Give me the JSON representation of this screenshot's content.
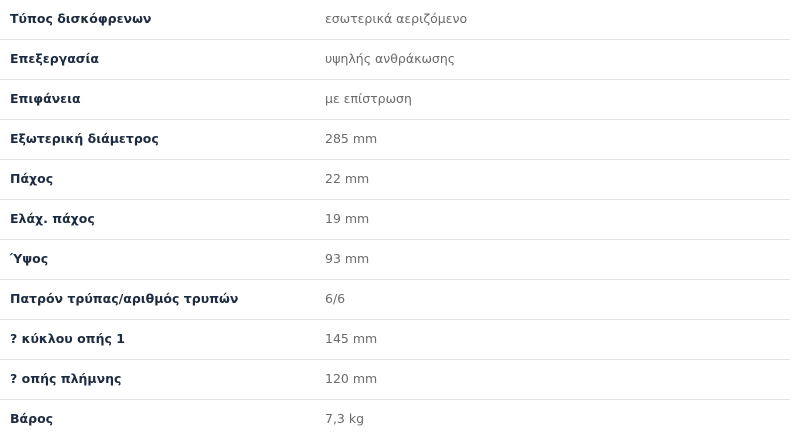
{
  "specs": [
    {
      "label": "Τύπος δισκόφρενων",
      "value": "εσωτερικά αεριζόμενο"
    },
    {
      "label": "Επεξεργασία",
      "value": "υψηλής ανθράκωσης"
    },
    {
      "label": "Επιφάνεια",
      "value": "με επίστρωση"
    },
    {
      "label": "Εξωτερική διάμετρος",
      "value": "285 mm"
    },
    {
      "label": "Πάχος",
      "value": "22 mm"
    },
    {
      "label": "Ελάχ. πάχος",
      "value": "19 mm"
    },
    {
      "label": "Ύψος",
      "value": "93 mm"
    },
    {
      "label": "Πατρόν τρύπας/αριθμός τρυπών",
      "value": "6/6"
    },
    {
      "label": "? κύκλου οπής 1",
      "value": "145 mm"
    },
    {
      "label": "? οπής πλήμνης",
      "value": "120 mm"
    },
    {
      "label": "Βάρος",
      "value": "7,3 kg"
    }
  ]
}
